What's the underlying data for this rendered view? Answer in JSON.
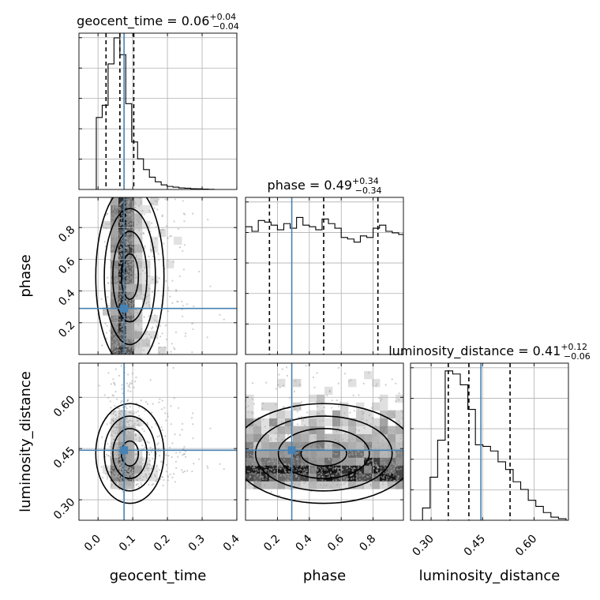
{
  "chart_data": {
    "type": "corner",
    "parameters": [
      "geocent_time",
      "phase",
      "luminosity_distance"
    ],
    "axes": {
      "geocent_time": {
        "label": "geocent_time",
        "range": [
          -0.055,
          0.4
        ],
        "ticks": [
          0.0,
          0.1,
          0.2,
          0.3,
          0.4
        ],
        "tick_labels": [
          "0.0",
          "0.1",
          "0.2",
          "0.3",
          "0.4"
        ]
      },
      "phase": {
        "label": "phase",
        "range": [
          0.0,
          0.99
        ],
        "ticks": [
          0.2,
          0.4,
          0.6,
          0.8
        ],
        "tick_labels": [
          "0.2",
          "0.4",
          "0.6",
          "0.8"
        ]
      },
      "luminosity_distance": {
        "label": "luminosity_distance",
        "range": [
          0.24,
          0.7
        ],
        "ticks": [
          0.3,
          0.45,
          0.6
        ],
        "tick_labels": [
          "0.30",
          "0.45",
          "0.60"
        ]
      }
    },
    "titles": [
      {
        "param": "geocent_time",
        "prefix": "geocent_time = ",
        "median": "0.06",
        "plus": "+0.04",
        "minus": "−0.04"
      },
      {
        "param": "phase",
        "prefix": "phase = ",
        "median": "0.49",
        "plus": "+0.34",
        "minus": "−0.34"
      },
      {
        "param": "luminosity_distance",
        "prefix": "luminosity_distance = ",
        "median": "0.41",
        "plus": "+0.12",
        "minus": "−0.06"
      }
    ],
    "truths": {
      "geocent_time": 0.075,
      "phase": 0.29,
      "luminosity_distance": 0.445
    },
    "quantiles": {
      "geocent_time": [
        0.023,
        0.063,
        0.103
      ],
      "phase": [
        0.15,
        0.49,
        0.83
      ],
      "luminosity_distance": [
        0.35,
        0.41,
        0.53
      ]
    },
    "histograms": {
      "geocent_time": {
        "edges": [
          -0.005,
          0.012,
          0.029,
          0.046,
          0.063,
          0.08,
          0.097,
          0.114,
          0.131,
          0.148,
          0.165,
          0.182,
          0.199,
          0.216,
          0.233,
          0.25,
          0.267,
          0.284,
          0.301,
          0.318,
          0.335
        ],
        "counts": [
          0.47,
          0.55,
          0.82,
          0.99,
          0.88,
          0.56,
          0.31,
          0.2,
          0.13,
          0.08,
          0.05,
          0.03,
          0.02,
          0.015,
          0.01,
          0.008,
          0.005,
          0.004,
          0.002,
          0.001
        ]
      },
      "phase": {
        "edges": [
          0.0,
          0.04,
          0.08,
          0.12,
          0.16,
          0.2,
          0.24,
          0.28,
          0.32,
          0.36,
          0.4,
          0.44,
          0.48,
          0.52,
          0.56,
          0.6,
          0.64,
          0.68,
          0.72,
          0.76,
          0.8,
          0.84,
          0.88,
          0.92,
          0.96,
          0.99
        ],
        "counts": [
          0.83,
          0.8,
          0.87,
          0.86,
          0.84,
          0.81,
          0.85,
          0.82,
          0.89,
          0.84,
          0.83,
          0.81,
          0.88,
          0.85,
          0.82,
          0.76,
          0.75,
          0.73,
          0.77,
          0.76,
          0.82,
          0.84,
          0.8,
          0.79,
          0.78
        ]
      },
      "luminosity_distance": {
        "edges": [
          0.275,
          0.297,
          0.319,
          0.341,
          0.363,
          0.385,
          0.407,
          0.429,
          0.451,
          0.473,
          0.495,
          0.517,
          0.539,
          0.561,
          0.583,
          0.605,
          0.627,
          0.649,
          0.671,
          0.693
        ],
        "counts": [
          0.08,
          0.28,
          0.52,
          0.97,
          0.95,
          0.88,
          0.72,
          0.49,
          0.48,
          0.45,
          0.38,
          0.33,
          0.25,
          0.2,
          0.13,
          0.09,
          0.05,
          0.02,
          0.01
        ]
      }
    },
    "pairs": [
      {
        "x": "geocent_time",
        "y": "phase"
      },
      {
        "x": "geocent_time",
        "y": "luminosity_distance"
      },
      {
        "x": "phase",
        "y": "luminosity_distance"
      }
    ],
    "colors": {
      "truth": "#4682b4",
      "hist": "#000000",
      "points": "#a6a6a6",
      "quantile": "#000000"
    }
  }
}
